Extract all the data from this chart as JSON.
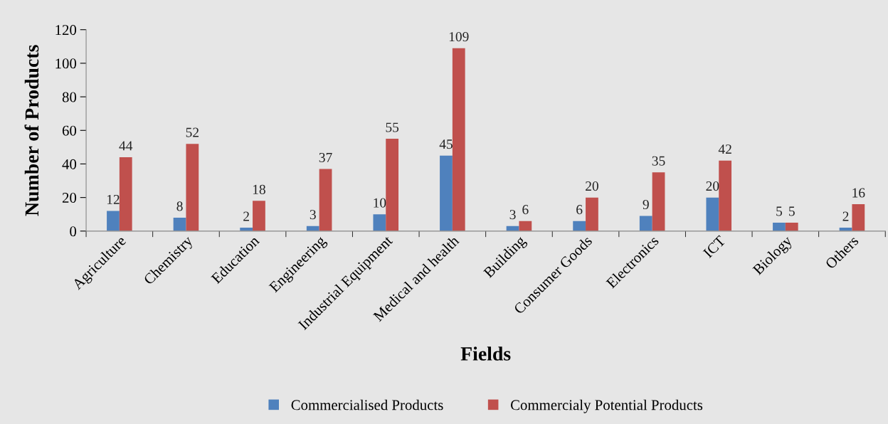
{
  "chart_data": {
    "type": "bar",
    "xlabel": "Fields",
    "ylabel": "Number of Products",
    "categories": [
      "Agriculture",
      "Chemistry",
      "Education",
      "Engineering",
      "Industrial Equipment",
      "Medical and health",
      "Building",
      "Consumer Goods",
      "Electronics",
      "ICT",
      "Biology",
      "Others"
    ],
    "series": [
      {
        "name": "Commercialised Products",
        "color": "#4f81bd",
        "values": [
          12,
          8,
          2,
          3,
          10,
          45,
          3,
          6,
          9,
          20,
          5,
          2
        ]
      },
      {
        "name": "Commercialy Potential Products",
        "color": "#c0504d",
        "values": [
          44,
          52,
          18,
          37,
          55,
          109,
          6,
          20,
          35,
          42,
          5,
          16
        ]
      }
    ],
    "ylim": [
      0,
      120
    ],
    "yticks": [
      0,
      20,
      40,
      60,
      80,
      100,
      120
    ],
    "data_labels": true,
    "grid": false,
    "legend": "bottom"
  }
}
